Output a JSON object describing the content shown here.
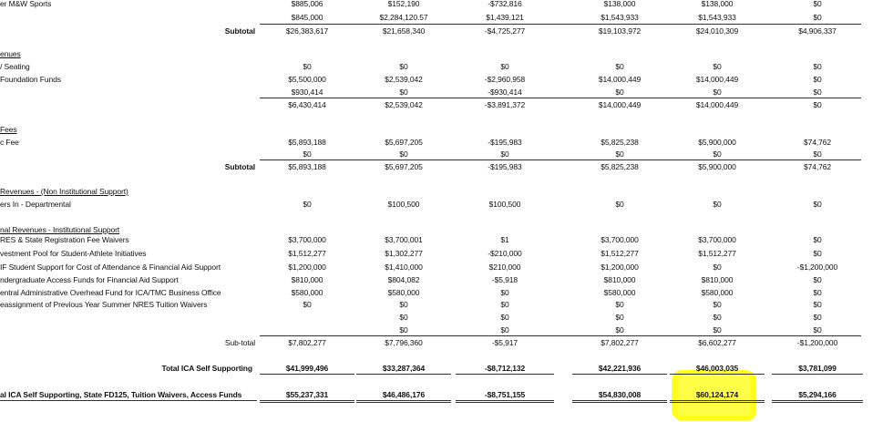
{
  "rows": [
    {
      "label": "er M&W Sports",
      "cells": [
        "$885,006",
        "$152,190",
        "-$732,816",
        "$138,000",
        "$138,000",
        "$0"
      ]
    },
    {
      "cells": [
        "$845,000",
        "$2,284,120.57",
        "$1,439,121",
        "$1,543,933",
        "$1,543,933",
        "$0"
      ]
    },
    {
      "label": "Subtotal",
      "cells": [
        "$26,383,617",
        "$21,658,340",
        "-$4,725,277",
        "$19,103,972",
        "$24,010,309",
        "$4,906,337"
      ]
    },
    {
      "label": "enues"
    },
    {
      "label": "/ Seating",
      "cells": [
        "$0",
        "$0",
        "$0",
        "$0",
        "$0",
        "$0"
      ]
    },
    {
      "label": "Foundation Funds",
      "cells": [
        "$5,500,000",
        "$2,539,042",
        "-$2,960,958",
        "$14,000,449",
        "$14,000,449",
        "$0"
      ]
    },
    {
      "cells": [
        "$930,414",
        "$0",
        "-$930,414",
        "$0",
        "$0",
        "$0"
      ]
    },
    {
      "cells": [
        "$6,430,414",
        "$2,539,042",
        "-$3,891,372",
        "$14,000,449",
        "$14,000,449",
        "$0"
      ]
    },
    {
      "label": "Fees"
    },
    {
      "label": "c Fee",
      "cells": [
        "$5,893,188",
        "$5,697,205",
        "-$195,983",
        "$5,825,238",
        "$5,900,000",
        "$74,762"
      ]
    },
    {
      "cells": [
        "$0",
        "$0",
        "$0",
        "$0",
        "$0",
        "$0"
      ]
    },
    {
      "label": "Subtotal",
      "cells": [
        "$5,893,188",
        "$5,697,205",
        "-$195,983",
        "$5,825,238",
        "$5,900,000",
        "$74,762"
      ]
    },
    {
      "label": "Revenues - (Non Institutional Support)"
    },
    {
      "label": "ers In - Departmental",
      "cells": [
        "$0",
        "$100,500",
        "$100,500",
        "$0",
        "$0",
        "$0"
      ]
    },
    {
      "label": "nal Revenues - Institutional Support"
    },
    {
      "label": "RES & State Registration Fee Waivers",
      "cells": [
        "$3,700,000",
        "$3,700,001",
        "$1",
        "$3,700,000",
        "$3,700,000",
        "$0"
      ]
    },
    {
      "label": "vestment Pool for Student-Athlete Initiatives",
      "cells": [
        "$1,512,277",
        "$1,302,277",
        "-$210,000",
        "$1,512,277",
        "$1,512,277",
        "$0"
      ]
    },
    {
      "label": "IF Student Support for Cost of Attendance & Financial Aid Support",
      "cells": [
        "$1,200,000",
        "$1,410,000",
        "$210,000",
        "$1,200,000",
        "$0",
        "-$1,200,000"
      ]
    },
    {
      "label": "ndergraduate Access Funds for Financial Aid Support",
      "cells": [
        "$810,000",
        "$804,082",
        "-$5,918",
        "$810,000",
        "$810,000",
        "$0"
      ]
    },
    {
      "label": "entral Administrative Overhead Fund for ICA/TMC Business Office",
      "cells": [
        "$580,000",
        "$580,000",
        "$0",
        "$580,000",
        "$580,000",
        "$0"
      ]
    },
    {
      "label": "eassignment of Previous Year Summer NRES Tuition Waivers",
      "cells": [
        "$0",
        "$0",
        "$0",
        "$0",
        "$0",
        "$0"
      ]
    },
    {
      "cells": [
        null,
        "$0",
        "$0",
        "$0",
        "$0",
        "$0"
      ]
    },
    {
      "cells": [
        null,
        "$0",
        "$0",
        "$0",
        "$0",
        "$0"
      ]
    },
    {
      "label": "Sub-total",
      "cells": [
        "$7,802,277",
        "$7,796,360",
        "-$5,917",
        "$7,802,277",
        "$6,602,277",
        "-$1,200,000"
      ]
    },
    {
      "label": "Total ICA Self Supporting",
      "cells": [
        "$41,999,496",
        "$33,287,364",
        "-$8,712,132",
        "$42,221,936",
        "$46,003,035",
        "$3,781,099"
      ]
    },
    {
      "label": "al ICA Self Supporting, State FD125, Tuition Waivers, Access Funds",
      "cells": [
        "$55,237,331",
        "$46,486,176",
        "-$8,751,155",
        "$54,830,008",
        "$60,124,174",
        "$5,294,166"
      ]
    }
  ]
}
